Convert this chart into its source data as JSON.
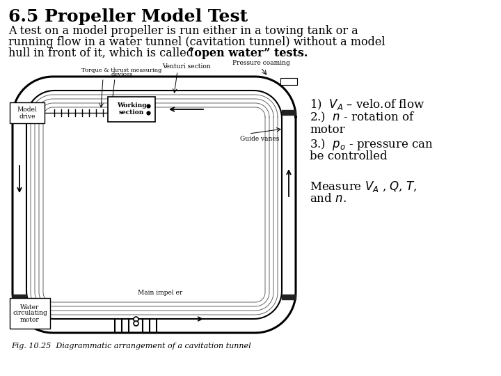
{
  "title": "6.5 Propeller Model Test",
  "line1": "A test on a model propeller is run either in a towing tank or a",
  "line2": "running flow in a water tunnel (cavitation tunnel) without a model",
  "line3_normal": "hull in front of it, which is called ",
  "line3_bold": "“open water” tests.",
  "annot1": "1)  $V_A$ – velo.of flow",
  "annot2a": "2.)  $n$ - rotation of",
  "annot2b": "motor",
  "annot3a": "3.)  $p_o$ - pressure can",
  "annot3b": "be controlled",
  "measure1": "Measure $V_A$ , $Q$, $T$,",
  "measure2": "and $n$.",
  "fig_caption": "Fig. 10.25  Diagrammatic arrangement of a cavitation tunnel",
  "bg_color": "#ffffff",
  "title_fontsize": 18,
  "body_fontsize": 11.5,
  "annot_fontsize": 12,
  "caption_fontsize": 8
}
